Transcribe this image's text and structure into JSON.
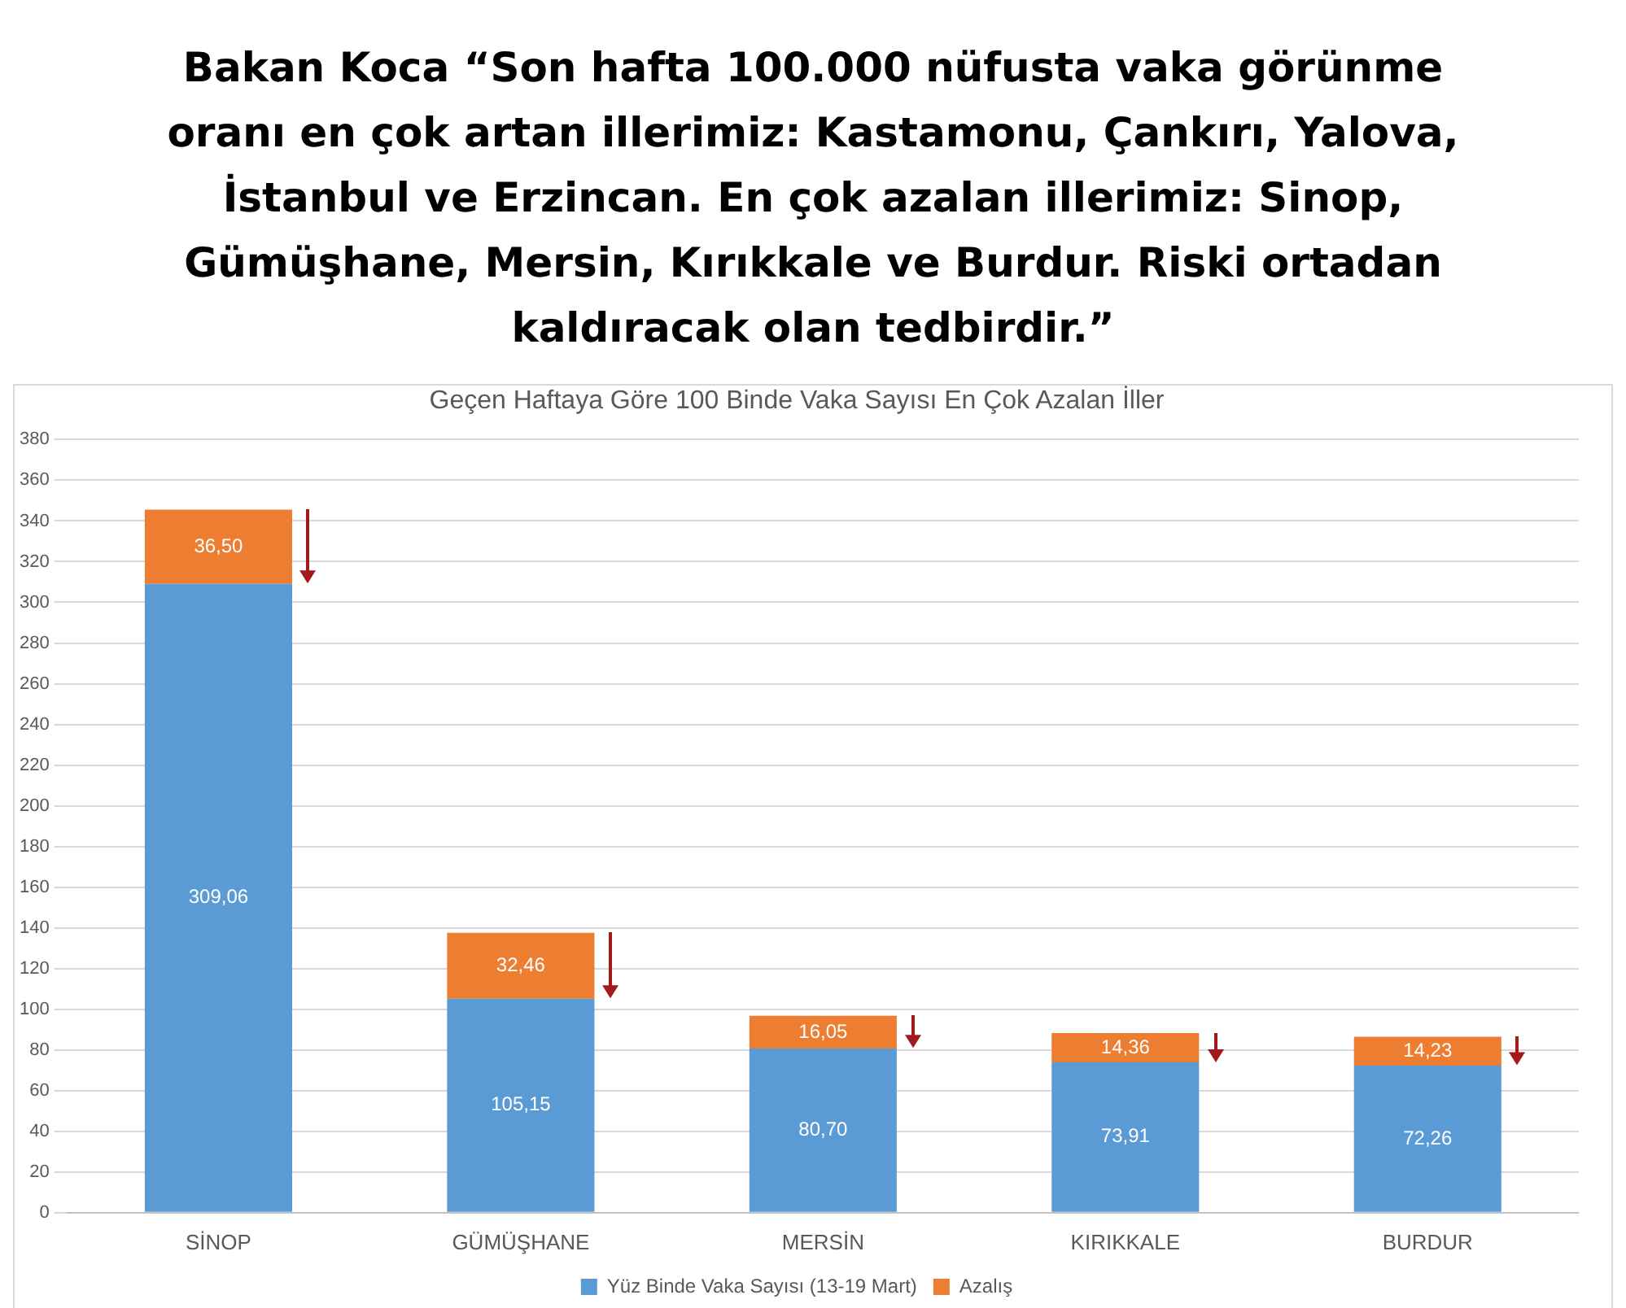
{
  "chart_data": {
    "type": "bar",
    "title": "Bakan Koca “Son hafta 100.000 nüfusta vaka görünme oranı en çok artan illerimiz: Kastamonu, Çankırı, Yalova, İstanbul ve Erzincan. En çok azalan illerimiz: Sinop, Gümüşhane, Mersin, Kırıkkale ve Burdur. Riski ortadan kaldıracak olan tedbirdir.”",
    "subtitle": "Geçen Haftaya Göre 100 Binde Vaka Sayısı En Çok Azalan İller",
    "categories": [
      "SİNOP",
      "GÜMÜŞHANE",
      "MERSİN",
      "KIRIKKALE",
      "BURDUR"
    ],
    "stacked": true,
    "series": [
      {
        "name": "Yüz Binde Vaka Sayısı (13-19 Mart)",
        "color": "#5b9bd5",
        "values": [
          309.06,
          105.15,
          80.7,
          73.91,
          72.26
        ],
        "value_labels": [
          "309,06",
          "105,15",
          "80,70",
          "73,91",
          "72,26"
        ]
      },
      {
        "name": "Azalış",
        "color": "#ed7d31",
        "values": [
          36.5,
          32.46,
          16.05,
          14.36,
          14.23
        ],
        "value_labels": [
          "36,50",
          "32,46",
          "16,05",
          "14,36",
          "14,23"
        ]
      }
    ],
    "ylim": [
      0,
      380
    ],
    "yticks": [
      0,
      20,
      40,
      60,
      80,
      100,
      120,
      140,
      160,
      180,
      200,
      220,
      240,
      260,
      280,
      300,
      320,
      340,
      360,
      380
    ],
    "grid": "y",
    "legend": "bottom"
  }
}
